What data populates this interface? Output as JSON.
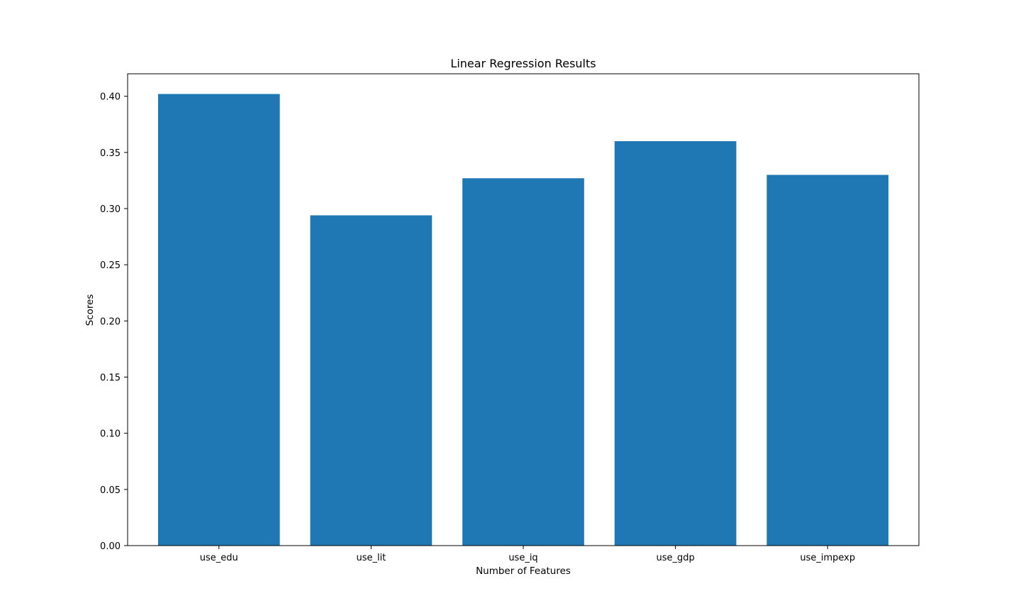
{
  "chart_data": {
    "type": "bar",
    "title": "Linear Regression Results",
    "xlabel": "Number of Features",
    "ylabel": "Scores",
    "categories": [
      "use_edu",
      "use_lit",
      "use_iq",
      "use_gdp",
      "use_impexp"
    ],
    "values": [
      0.402,
      0.294,
      0.327,
      0.36,
      0.33
    ],
    "ylim": [
      0,
      0.42
    ],
    "yticks": [
      "0.00",
      "0.05",
      "0.10",
      "0.15",
      "0.20",
      "0.25",
      "0.30",
      "0.35",
      "0.40"
    ],
    "grid": false,
    "bar_color": "#1f77b4"
  }
}
